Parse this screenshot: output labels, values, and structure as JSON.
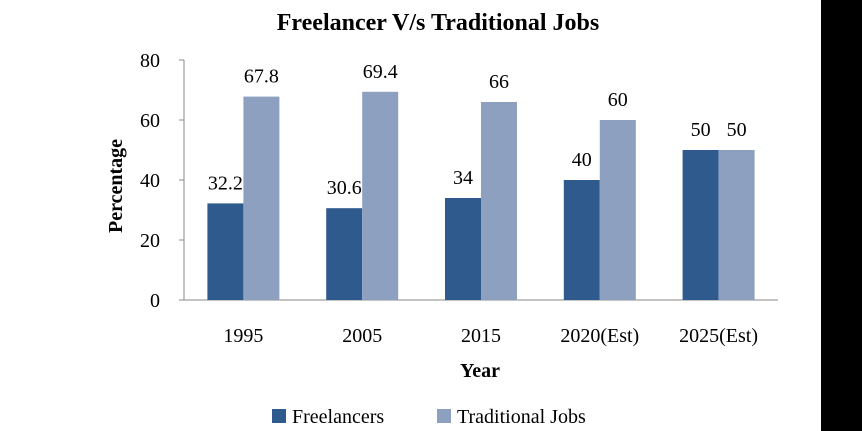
{
  "chart_data": {
    "type": "bar",
    "title": "Freelancer V/s Traditional Jobs",
    "xlabel": "Year",
    "ylabel": "Percentage",
    "categories": [
      "1995",
      "2005",
      "2015",
      "2020(Est)",
      "2025(Est)"
    ],
    "series": [
      {
        "name": "Freelancers",
        "values": [
          32.2,
          30.6,
          34,
          40,
          50
        ],
        "labels": [
          "32.2",
          "30.6",
          "34",
          "40",
          "50"
        ],
        "color": "#2F5A8E"
      },
      {
        "name": "Traditional Jobs",
        "values": [
          67.8,
          69.4,
          66,
          60,
          50
        ],
        "labels": [
          "67.8",
          "69.4",
          "66",
          "60",
          "50"
        ],
        "color": "#8DA0C0"
      }
    ],
    "ylim": [
      0,
      80
    ],
    "yticks": [
      "0",
      "20",
      "40",
      "60",
      "80"
    ],
    "grid": false,
    "legend_position": "bottom"
  }
}
